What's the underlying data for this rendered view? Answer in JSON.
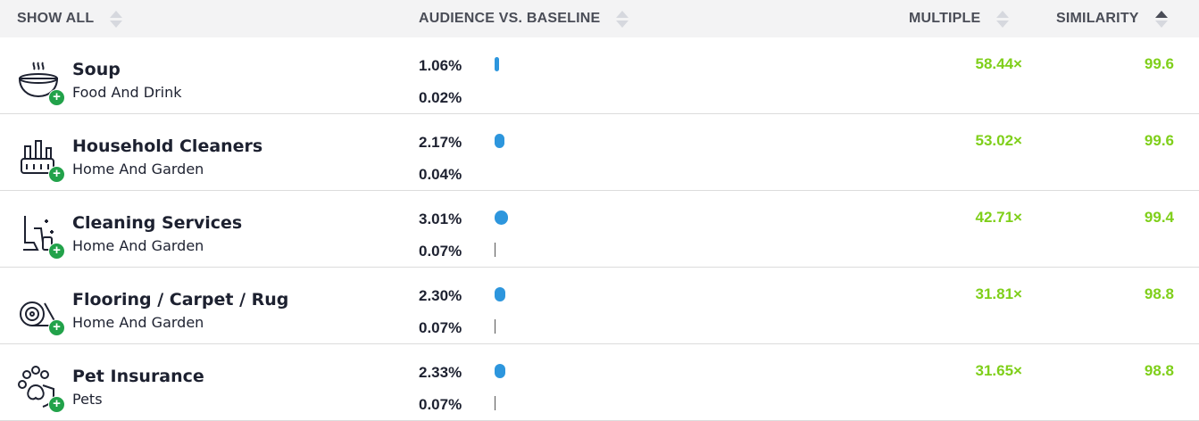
{
  "header": {
    "show_all": "SHOW ALL",
    "audience": "AUDIENCE VS. BASELINE",
    "multiple": "MULTIPLE",
    "similarity": "SIMILARITY",
    "active_sort": "similarity-desc"
  },
  "colors": {
    "accent_green": "#7fcf1a",
    "bar_blue": "#2d96dd",
    "plus_green": "#22a24a"
  },
  "rows": [
    {
      "icon": "soup-bowl-icon",
      "name": "Soup",
      "category": "Food And Drink",
      "audience": "1.06%",
      "baseline": "0.02%",
      "audience_value": 1.06,
      "baseline_value": 0.02,
      "multiple": "58.44×",
      "similarity": "99.6"
    },
    {
      "icon": "cleaning-supplies-icon",
      "name": "Household Cleaners",
      "category": "Home And Garden",
      "audience": "2.17%",
      "baseline": "0.04%",
      "audience_value": 2.17,
      "baseline_value": 0.04,
      "multiple": "53.02×",
      "similarity": "99.6"
    },
    {
      "icon": "vacuum-spray-icon",
      "name": "Cleaning Services",
      "category": "Home And Garden",
      "audience": "3.01%",
      "baseline": "0.07%",
      "audience_value": 3.01,
      "baseline_value": 0.07,
      "multiple": "42.71×",
      "similarity": "99.4"
    },
    {
      "icon": "carpet-roll-icon",
      "name": "Flooring / Carpet / Rug",
      "category": "Home And Garden",
      "audience": "2.30%",
      "baseline": "0.07%",
      "audience_value": 2.3,
      "baseline_value": 0.07,
      "multiple": "31.81×",
      "similarity": "98.8"
    },
    {
      "icon": "paw-shield-icon",
      "name": "Pet Insurance",
      "category": "Pets",
      "audience": "2.33%",
      "baseline": "0.07%",
      "audience_value": 2.33,
      "baseline_value": 0.07,
      "multiple": "31.65×",
      "similarity": "98.8"
    }
  ]
}
